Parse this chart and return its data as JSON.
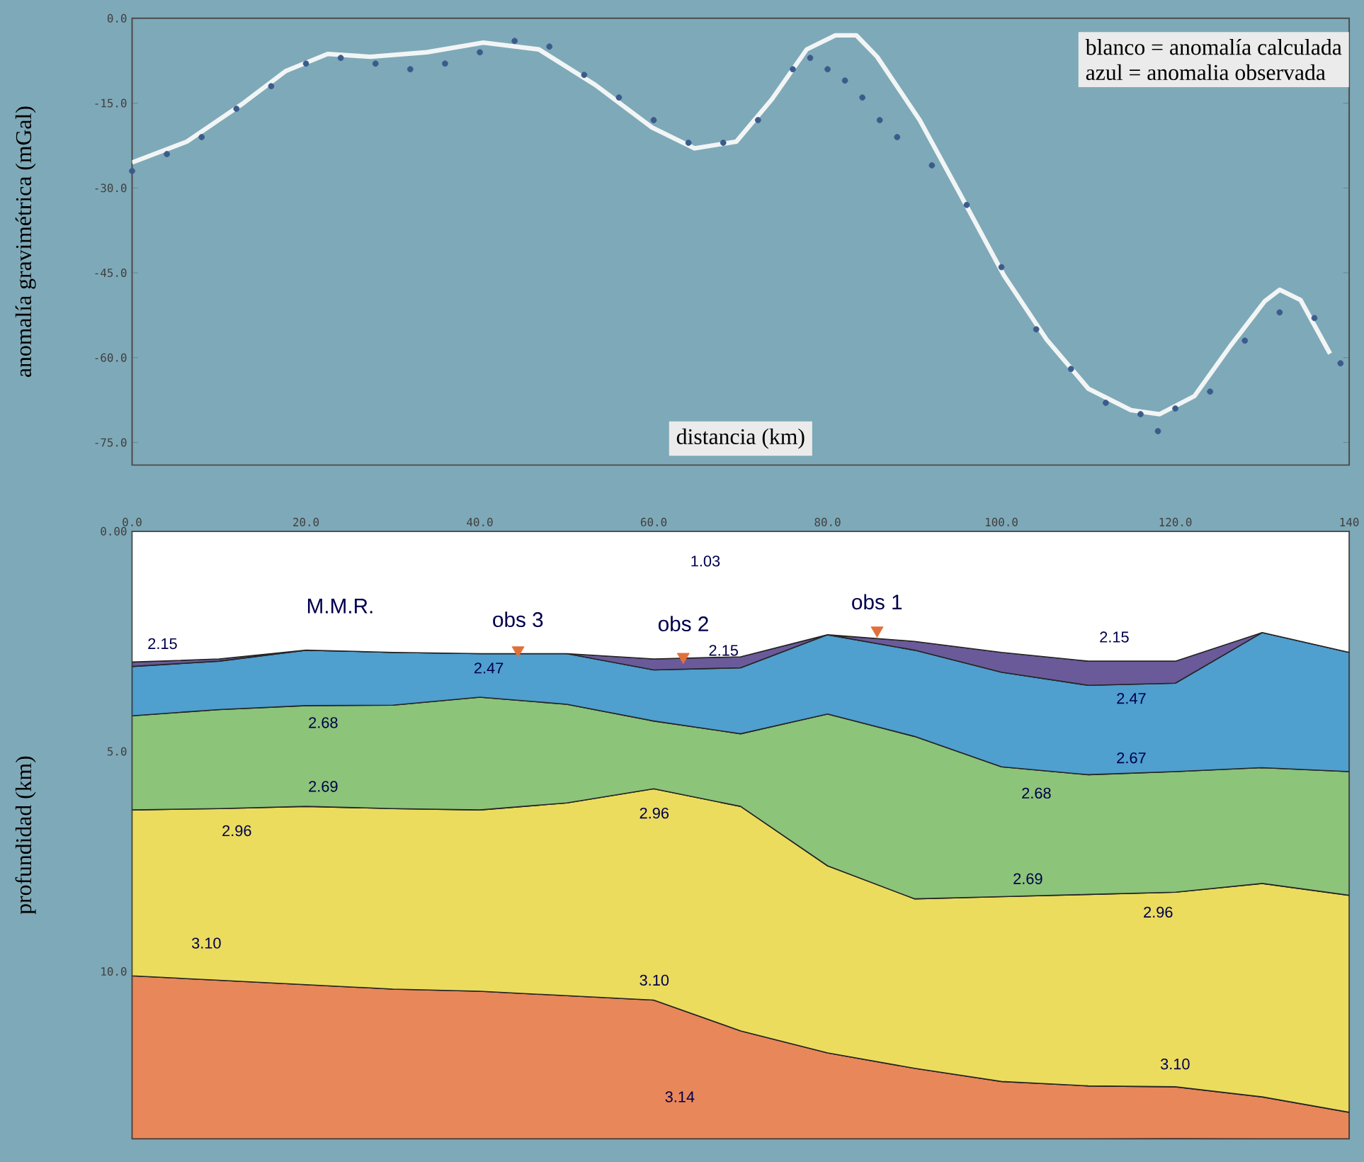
{
  "chart_data": [
    {
      "type": "line",
      "xlabel": "distancia (km)",
      "ylabel": "anomalía gravimétrica (mGal)",
      "annotations": [
        "blanco = anomalía calculada",
        "azul = anomalia observada"
      ],
      "xlim": [
        0,
        140
      ],
      "ylim": [
        -79,
        0
      ],
      "yticks": [
        {
          "value": 0,
          "label": "0.0"
        },
        {
          "value": -15,
          "label": "-15.0"
        },
        {
          "value": -30,
          "label": "-30.0"
        },
        {
          "value": -45,
          "label": "-45.0"
        },
        {
          "value": -60,
          "label": "-60.0"
        },
        {
          "value": -75,
          "label": "-75.0"
        }
      ],
      "tick_labels": "y",
      "series": [
        {
          "type": "scatter",
          "marker": "circle",
          "color": "#3b5b8c",
          "x": [
            0,
            4,
            8,
            12,
            16,
            20,
            24,
            28,
            32,
            36,
            40,
            44,
            48,
            52,
            56,
            60,
            64,
            68,
            72,
            76,
            78,
            80,
            82,
            84,
            86,
            88,
            92,
            96,
            100,
            104,
            108,
            112,
            116,
            118,
            120,
            124,
            128,
            132,
            136,
            139
          ],
          "values": [
            -27,
            -24,
            -21,
            -16,
            -12,
            -8,
            -7,
            -8,
            -9,
            -8,
            -6,
            -4,
            -5,
            -10,
            -14,
            -18,
            -22,
            -22,
            -18,
            -9,
            -7,
            -9,
            -11,
            -14,
            -18,
            -21,
            -26,
            -33,
            -44,
            -55,
            -62,
            -68,
            -70,
            -73,
            -69,
            -66,
            -57,
            -52,
            -53,
            -61
          ]
        },
        {
          "type": "line",
          "color": "#f2f5f5",
          "x": [
            0,
            6.3,
            12.8,
            17.7,
            22.5,
            27.4,
            33.9,
            40.4,
            46.8,
            53.3,
            59.8,
            64.7,
            69.5,
            73.6,
            77.6,
            80.9,
            83.3,
            85.7,
            90.6,
            95.5,
            100.3,
            105.2,
            110,
            114.9,
            118.2,
            122.2,
            126.3,
            130.3,
            132,
            134.4,
            137.8
          ],
          "values": [
            -25.5,
            -21.8,
            -15,
            -9.3,
            -6.3,
            -6.8,
            -6,
            -4.3,
            -5.5,
            -11.8,
            -19.3,
            -23,
            -21.8,
            -14.3,
            -5.5,
            -3,
            -3,
            -6.8,
            -18,
            -31.8,
            -45.5,
            -56.8,
            -65.5,
            -69.3,
            -70,
            -66.8,
            -58,
            -50,
            -48,
            -49.8,
            -59.3
          ]
        }
      ]
    },
    {
      "type": "area",
      "stacked": true,
      "ylabel": "profundidad (km)",
      "xlim": [
        0,
        140
      ],
      "ylim": [
        13.8,
        0
      ],
      "xticks": [
        {
          "value": 0,
          "label": "0.0"
        },
        {
          "value": 20,
          "label": "20.0"
        },
        {
          "value": 40,
          "label": "40.0"
        },
        {
          "value": 60,
          "label": "60.0"
        },
        {
          "value": 80,
          "label": "80.0"
        },
        {
          "value": 100,
          "label": "100.0"
        },
        {
          "value": 120,
          "label": "120.0"
        },
        140
      ],
      "yticks": [
        {
          "value": 0,
          "label": "0.00"
        },
        {
          "value": 5,
          "label": "5.0"
        },
        {
          "value": 10,
          "label": "10.0"
        }
      ],
      "x": [
        0,
        10,
        20,
        30,
        40,
        50,
        60,
        70,
        80,
        90,
        100,
        110,
        120,
        130,
        140
      ],
      "series": [
        {
          "color": "#ffffff",
          "values": [
            2.97,
            2.9,
            2.7,
            2.75,
            2.78,
            2.78,
            2.9,
            2.85,
            2.35,
            2.5,
            2.75,
            2.95,
            2.95,
            2.3,
            2.75
          ]
        },
        {
          "color": "#6a5a9a",
          "values": [
            0.1,
            0.05,
            0,
            0,
            0,
            0,
            0.25,
            0.25,
            0,
            0.2,
            0.45,
            0.55,
            0.5,
            0,
            0
          ]
        },
        {
          "color": "#4f9fcf",
          "values": [
            1.12,
            1.1,
            1.26,
            1.2,
            0.99,
            1.15,
            1.16,
            1.5,
            1.8,
            1.96,
            2.15,
            2.03,
            2.01,
            3.07,
            2.71
          ]
        },
        {
          "color": "#8cc47a",
          "values": [
            2.14,
            2.25,
            2.29,
            2.35,
            2.56,
            2.24,
            1.54,
            1.65,
            3.45,
            3.69,
            2.95,
            2.72,
            2.74,
            2.63,
            2.81
          ]
        },
        {
          "color": "#ebdc5e",
          "values": [
            3.77,
            3.9,
            4.05,
            4.1,
            4.12,
            4.38,
            4.8,
            5.1,
            4.25,
            3.85,
            4.2,
            4.35,
            4.42,
            4.85,
            4.93
          ]
        },
        {
          "color": "#e8875a",
          "values": [
            3.7,
            3.6,
            3.5,
            3.4,
            3.35,
            3.25,
            3.15,
            2.45,
            1.95,
            1.6,
            1.3,
            1.2,
            1.18,
            0.95,
            0.6
          ]
        },
        {
          "type": "scatter",
          "marker": "triangle",
          "color": "#e0703a",
          "x": [
            44.4,
            63.4,
            85.7
          ],
          "values": [
            2.7,
            2.85,
            2.25
          ]
        }
      ],
      "annotations": [
        "M.M.R.",
        "obs 3",
        "obs 2",
        "obs 1",
        "1.03",
        "2.15",
        "2.47",
        "2.15",
        "2.15",
        "2.47",
        "2.68",
        "2.67",
        "2.69",
        "2.68",
        "2.96",
        "2.96",
        "2.69",
        "2.96",
        "3.10",
        "3.10",
        "3.10",
        "3.14"
      ]
    }
  ]
}
